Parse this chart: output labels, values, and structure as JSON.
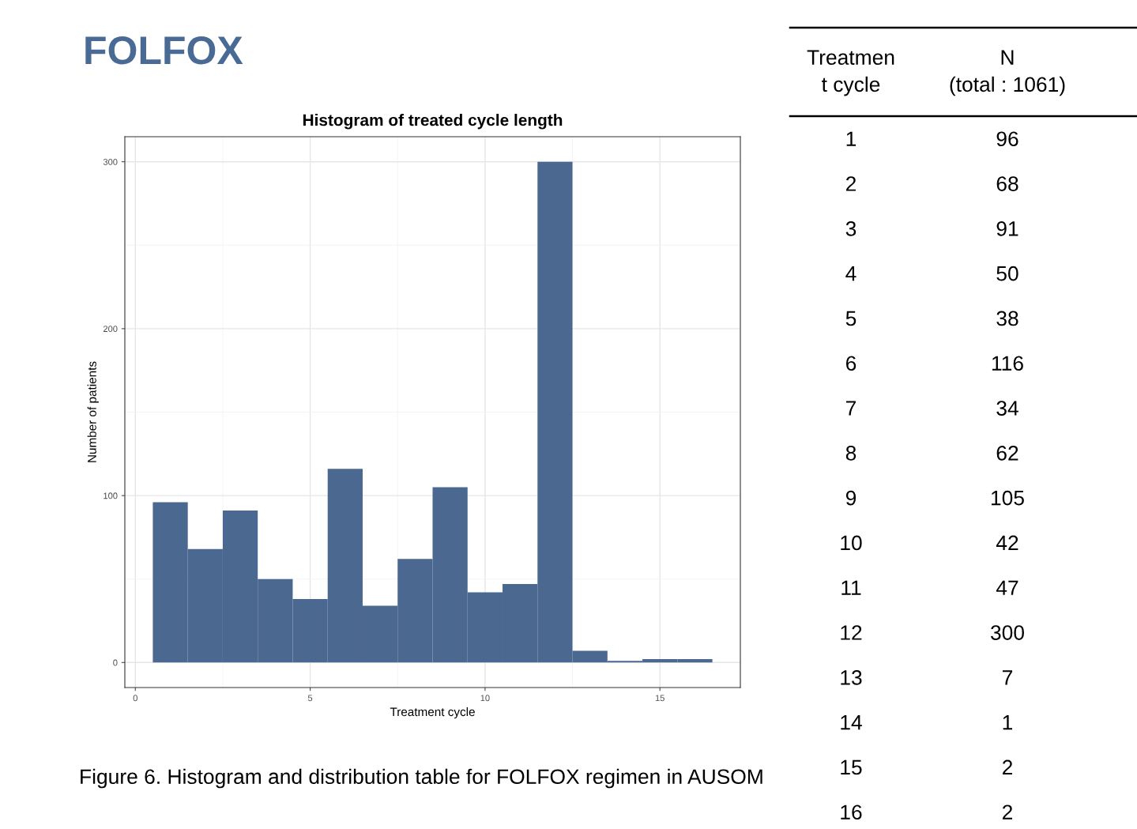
{
  "chart_data": {
    "type": "histogram",
    "title": "FOLFOX",
    "subtitle": "Histogram of treated cycle length",
    "xlabel": "Treatment cycle",
    "ylabel": "Number of patients",
    "bins": [
      0.5,
      1.5,
      2.5,
      3.5,
      4.5,
      5.5,
      6.5,
      7.5,
      8.5,
      9.5,
      10.5,
      11.5,
      12.5,
      13.5,
      14.5,
      15.5,
      16.5
    ],
    "values": [
      96,
      68,
      91,
      50,
      38,
      116,
      34,
      62,
      105,
      42,
      47,
      300,
      7,
      1,
      2,
      2
    ],
    "color": "#4b6890",
    "xlim": [
      -0.3,
      17.3
    ],
    "ylim": [
      -15,
      315
    ],
    "xticks": [
      0,
      5,
      10,
      15
    ],
    "yticks": [
      0,
      100,
      200,
      300
    ],
    "grid": true,
    "annotations": [
      "Treatmen\nt cycle",
      "N\n(total : 1061)",
      "1",
      "2",
      "3",
      "4",
      "5",
      "6",
      "7",
      "8",
      "9",
      "10",
      "11",
      "12",
      "13",
      "14",
      "15",
      "16",
      "96",
      "68",
      "91",
      "50",
      "38",
      "116",
      "34",
      "62",
      "105",
      "42",
      "47",
      "300",
      "7",
      "1",
      "2",
      "2",
      "Figure 6. Histogram and distribution table for FOLFOX regimen in AUSOM"
    ]
  }
}
